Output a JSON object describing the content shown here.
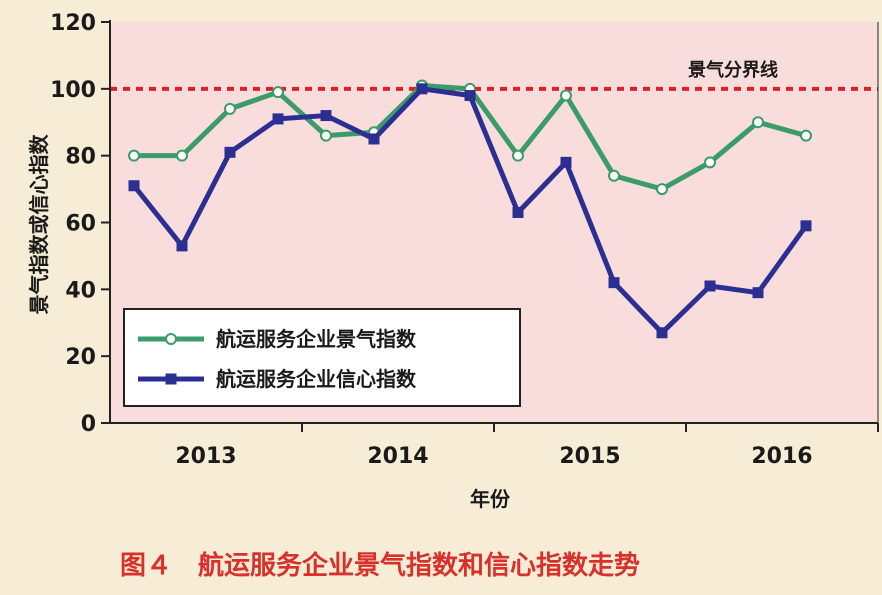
{
  "chart_data": {
    "type": "line",
    "caption": "图４　航运服务企业景气指数和信心指数走势",
    "xlabel": "年份",
    "ylabel": "景气指数或信心指数",
    "ylim": [
      0,
      120
    ],
    "yticks": [
      0,
      20,
      40,
      60,
      80,
      100,
      120
    ],
    "xlim": [
      2012.5,
      2016.5
    ],
    "x_tick_labels": [
      {
        "x": 2013.0,
        "label": "2013"
      },
      {
        "x": 2014.0,
        "label": "2014"
      },
      {
        "x": 2015.0,
        "label": "2015"
      },
      {
        "x": 2016.0,
        "label": "2016"
      }
    ],
    "x_minor_ticks": [
      2013.5,
      2014.5,
      2015.5,
      2016.5
    ],
    "threshold": {
      "value": 100,
      "label": "景气分界线",
      "color": "#e02020"
    },
    "grid": false,
    "legend_position": "bottom-left",
    "series": [
      {
        "name": "航运服务企业景气指数",
        "color": "#3a9c68",
        "marker": "circle-open",
        "x": [
          2012.625,
          2012.875,
          2013.125,
          2013.375,
          2013.625,
          2013.875,
          2014.125,
          2014.375,
          2014.625,
          2014.875,
          2015.125,
          2015.375,
          2015.625,
          2015.875,
          2016.125
        ],
        "values": [
          80,
          80,
          94,
          99,
          86,
          87,
          101,
          100,
          80,
          98,
          74,
          70,
          78,
          90,
          86
        ]
      },
      {
        "name": "航运服务企业信心指数",
        "color": "#2c2f92",
        "marker": "square-filled",
        "x": [
          2012.625,
          2012.875,
          2013.125,
          2013.375,
          2013.625,
          2013.875,
          2014.125,
          2014.375,
          2014.625,
          2014.875,
          2015.125,
          2015.375,
          2015.625,
          2015.875,
          2016.125
        ],
        "values": [
          71,
          53,
          81,
          91,
          92,
          85,
          100,
          98,
          63,
          78,
          42,
          27,
          41,
          39,
          59
        ]
      }
    ],
    "colors": {
      "page_background": "#f7edd6",
      "plot_background": "#f9dcdc",
      "axis": "#222222"
    }
  }
}
